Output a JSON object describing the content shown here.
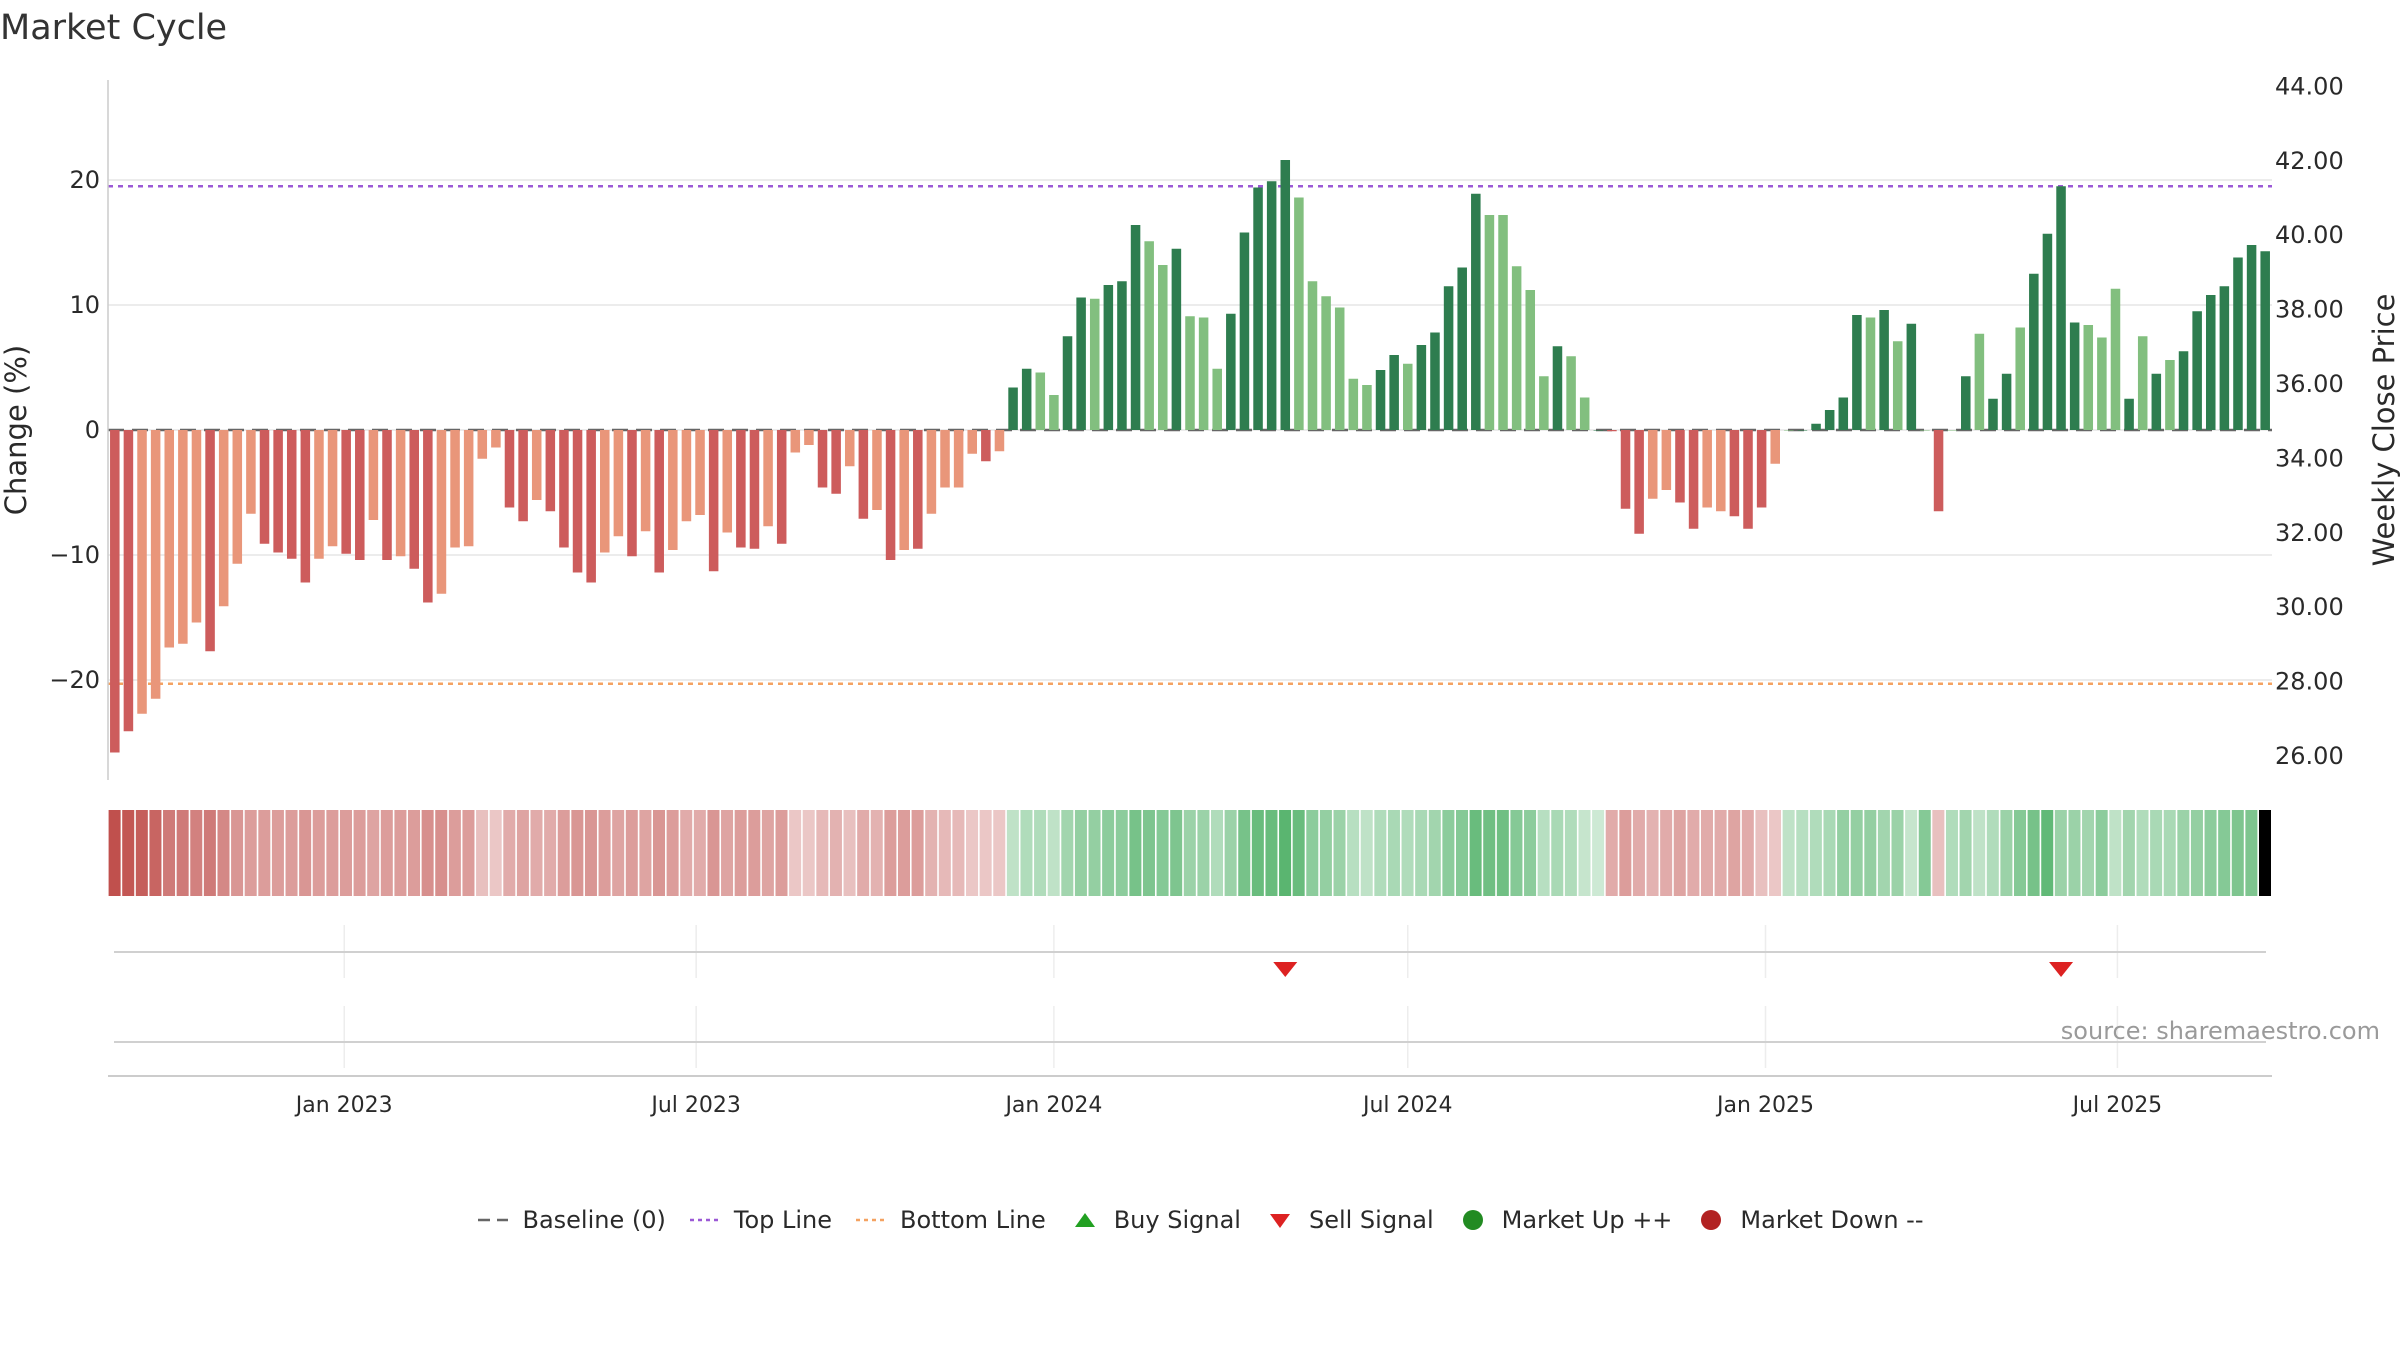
{
  "colors": {
    "pos_dark": "#2e7d4f",
    "pos_light": "#82bf7f",
    "neg_dark": "#cd5c5c",
    "neg_light": "#e9967a",
    "top_line": "#9b59d6",
    "bottom_line": "#f4a261",
    "baseline": "#666666",
    "buy": "#22a022",
    "sell": "#dd2222",
    "up": "#228b22",
    "down": "#b22222"
  },
  "legend": [
    {
      "label": "Baseline (0)",
      "symbol": "dash",
      "color": "#666666"
    },
    {
      "label": "Top Line",
      "symbol": "dotted",
      "color": "#9b59d6"
    },
    {
      "label": "Bottom Line",
      "symbol": "dotted",
      "color": "#f4a261"
    },
    {
      "label": "Buy Signal",
      "symbol": "triangle-up",
      "color": "#22a022"
    },
    {
      "label": "Sell Signal",
      "symbol": "triangle-down",
      "color": "#dd2222"
    },
    {
      "label": "Market Up ++",
      "symbol": "circle",
      "color": "#228b22"
    },
    {
      "label": "Market Down --",
      "symbol": "circle",
      "color": "#b22222"
    }
  ],
  "source": "source: sharemaestro.com",
  "chart_data": {
    "type": "bar",
    "title": "Market Cycle",
    "ylabel": "Change (%)",
    "y2label": "Weekly Close Price",
    "ylim": [
      -28,
      28
    ],
    "y2lim": [
      25,
      45
    ],
    "yticks": [
      -20,
      -10,
      0,
      10,
      20
    ],
    "y2ticks": [
      "26.00",
      "28.00",
      "30.00",
      "32.00",
      "34.00",
      "36.00",
      "38.00",
      "40.00",
      "42.00",
      "44.00"
    ],
    "top_line": 19.5,
    "bottom_line": -20.3,
    "x_start": "2022-09-05",
    "x_step_days": 7,
    "date_ticks": [
      {
        "date": "2023-01-01",
        "label": "Jan 2023"
      },
      {
        "date": "2023-07-01",
        "label": "Jul 2023"
      },
      {
        "date": "2024-01-01",
        "label": "Jan 2024"
      },
      {
        "date": "2024-07-01",
        "label": "Jul 2024"
      },
      {
        "date": "2025-01-01",
        "label": "Jan 2025"
      },
      {
        "date": "2025-07-01",
        "label": "Jul 2025"
      }
    ],
    "values": [
      -25.8,
      -24.1,
      -22.7,
      -21.5,
      -17.4,
      -17.1,
      -15.4,
      -17.7,
      -14.1,
      -10.7,
      -6.7,
      -9.1,
      -9.8,
      -10.3,
      -12.2,
      -10.3,
      -9.3,
      -9.9,
      -10.4,
      -7.2,
      -10.4,
      -10.1,
      -11.1,
      -13.8,
      -13.1,
      -9.4,
      -9.3,
      -2.3,
      -1.4,
      -6.2,
      -7.3,
      -5.6,
      -6.5,
      -9.4,
      -11.4,
      -12.2,
      -9.8,
      -8.5,
      -10.1,
      -8.1,
      -11.4,
      -9.6,
      -7.3,
      -6.8,
      -11.3,
      -8.2,
      -9.4,
      -9.5,
      -7.7,
      -9.1,
      -1.8,
      -1.2,
      -4.6,
      -5.1,
      -2.9,
      -7.1,
      -6.4,
      -10.4,
      -9.6,
      -9.5,
      -6.7,
      -4.6,
      -4.6,
      -1.9,
      -2.5,
      -1.7,
      3.4,
      4.9,
      4.6,
      2.8,
      7.5,
      10.6,
      10.5,
      11.6,
      11.9,
      16.4,
      15.1,
      13.2,
      14.5,
      9.1,
      9.0,
      4.9,
      9.3,
      15.8,
      19.4,
      19.9,
      21.6,
      18.6,
      11.9,
      10.7,
      9.8,
      4.1,
      3.6,
      4.8,
      6.0,
      5.3,
      6.8,
      7.8,
      11.5,
      13.0,
      18.9,
      17.2,
      17.2,
      13.1,
      11.2,
      4.3,
      6.7,
      5.9,
      2.6,
      0,
      -0.1,
      -6.3,
      -8.3,
      -5.5,
      -4.8,
      -5.8,
      -7.9,
      -6.2,
      -6.5,
      -6.9,
      -7.9,
      -6.2,
      -2.7,
      0,
      0,
      0.5,
      1.6,
      2.6,
      9.2,
      9.0,
      9.6,
      7.1,
      8.5,
      0,
      -6.5,
      0,
      4.3,
      7.7,
      2.5,
      4.5,
      8.2,
      12.5,
      15.7,
      19.5,
      8.6,
      8.4,
      7.4,
      11.3,
      2.5,
      7.5,
      4.5,
      5.6,
      6.3,
      9.5,
      10.8,
      11.5,
      13.8,
      14.8,
      14.3
    ],
    "tones": [
      "d",
      "d",
      "l",
      "l",
      "l",
      "l",
      "l",
      "d",
      "l",
      "l",
      "l",
      "d",
      "d",
      "d",
      "d",
      "l",
      "l",
      "d",
      "d",
      "l",
      "d",
      "l",
      "d",
      "d",
      "l",
      "l",
      "l",
      "l",
      "l",
      "d",
      "d",
      "l",
      "d",
      "d",
      "d",
      "d",
      "l",
      "l",
      "d",
      "l",
      "d",
      "l",
      "l",
      "l",
      "d",
      "l",
      "d",
      "d",
      "l",
      "d",
      "l",
      "l",
      "d",
      "d",
      "l",
      "d",
      "l",
      "d",
      "l",
      "d",
      "l",
      "l",
      "l",
      "l",
      "d",
      "l",
      "d",
      "d",
      "l",
      "l",
      "d",
      "d",
      "l",
      "d",
      "d",
      "d",
      "l",
      "l",
      "d",
      "l",
      "l",
      "l",
      "d",
      "d",
      "d",
      "d",
      "d",
      "l",
      "l",
      "l",
      "l",
      "l",
      "l",
      "d",
      "d",
      "l",
      "d",
      "d",
      "d",
      "d",
      "d",
      "l",
      "l",
      "l",
      "l",
      "l",
      "d",
      "l",
      "l",
      "d",
      "d",
      "d",
      "d",
      "l",
      "l",
      "d",
      "d",
      "l",
      "l",
      "d",
      "d",
      "d",
      "l",
      "l",
      "d",
      "d",
      "d",
      "d",
      "d",
      "l",
      "d",
      "l",
      "d",
      "l",
      "d",
      "l",
      "d",
      "l",
      "d",
      "d",
      "l",
      "d",
      "d",
      "d",
      "d",
      "l",
      "l",
      "l",
      "d",
      "l",
      "d",
      "l",
      "d",
      "d",
      "d",
      "d",
      "d",
      "d",
      "d",
      "l"
    ],
    "heat_strength": [
      1.0,
      0.95,
      0.9,
      0.85,
      0.7,
      0.7,
      0.65,
      0.7,
      0.6,
      0.5,
      0.45,
      0.45,
      0.45,
      0.45,
      0.5,
      0.45,
      0.45,
      0.45,
      0.45,
      0.4,
      0.45,
      0.45,
      0.45,
      0.55,
      0.55,
      0.45,
      0.45,
      0.2,
      0.15,
      0.35,
      0.4,
      0.35,
      0.35,
      0.45,
      0.5,
      0.5,
      0.45,
      0.4,
      0.45,
      0.4,
      0.5,
      0.45,
      0.35,
      0.35,
      0.5,
      0.4,
      0.45,
      0.45,
      0.4,
      0.45,
      0.15,
      0.15,
      0.25,
      0.3,
      0.2,
      0.35,
      0.3,
      0.45,
      0.45,
      0.45,
      0.3,
      0.25,
      0.25,
      0.15,
      0.15,
      0.15,
      0.2,
      0.3,
      0.3,
      0.2,
      0.4,
      0.5,
      0.5,
      0.55,
      0.55,
      0.7,
      0.65,
      0.6,
      0.65,
      0.45,
      0.45,
      0.3,
      0.45,
      0.7,
      0.8,
      0.8,
      0.9,
      0.8,
      0.55,
      0.5,
      0.45,
      0.25,
      0.2,
      0.3,
      0.35,
      0.3,
      0.35,
      0.4,
      0.55,
      0.6,
      0.8,
      0.75,
      0.75,
      0.6,
      0.55,
      0.25,
      0.35,
      0.3,
      0.15,
      0.1,
      0.35,
      0.45,
      0.35,
      0.3,
      0.35,
      0.4,
      0.35,
      0.35,
      0.35,
      0.4,
      0.35,
      0.2,
      0.15,
      0.2,
      0.25,
      0.3,
      0.35,
      0.5,
      0.5,
      0.5,
      0.4,
      0.45,
      0.15,
      0.6,
      0.2,
      0.3,
      0.4,
      0.2,
      0.3,
      0.45,
      0.6,
      0.7,
      0.85,
      0.45,
      0.45,
      0.4,
      0.55,
      0.2,
      0.4,
      0.3,
      0.35,
      0.35,
      0.45,
      0.5,
      0.55,
      0.6,
      0.65,
      0.65
    ],
    "sell_signals": [
      86,
      143
    ],
    "buy_signals": []
  }
}
